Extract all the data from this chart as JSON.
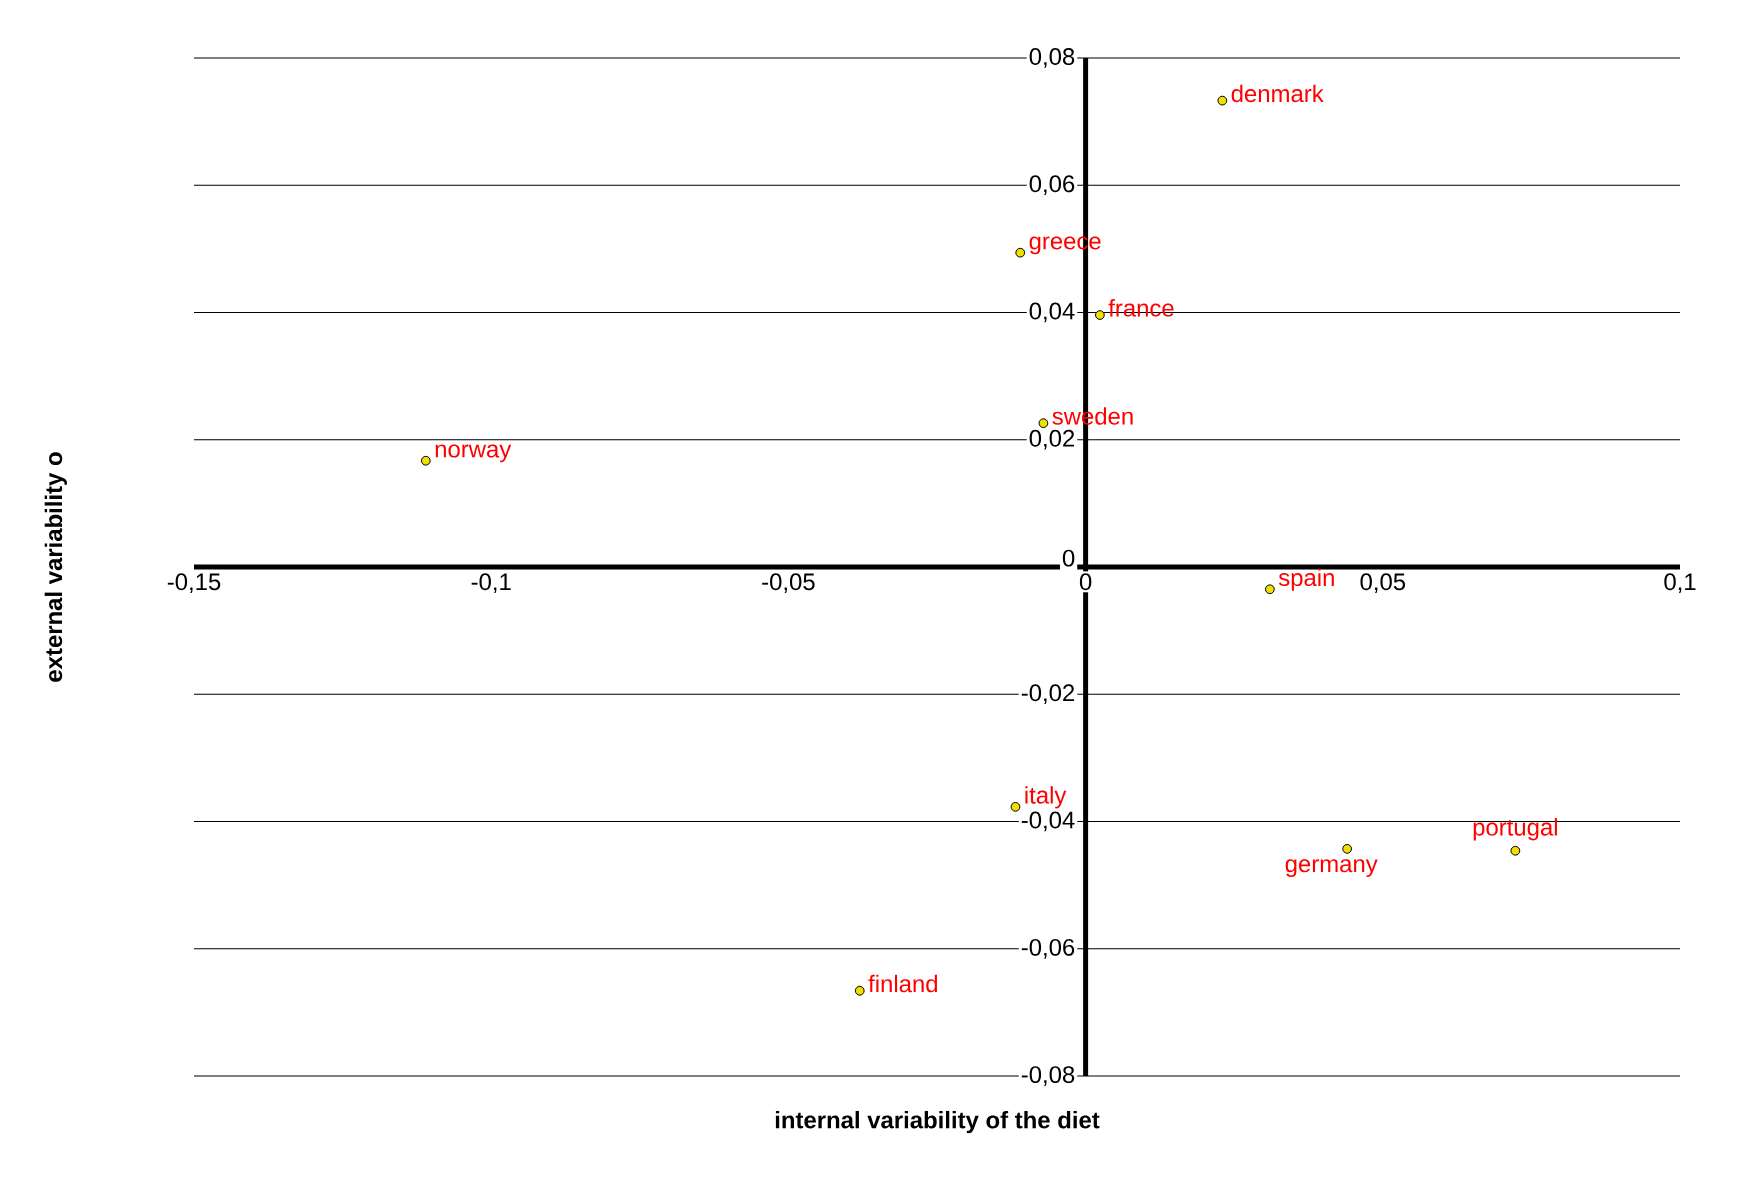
{
  "chart_data": {
    "type": "scatter",
    "xlabel": "internal variability of the diet",
    "ylabel": "external variability o",
    "x": [
      0.023,
      -0.011,
      0.0024,
      -0.0071,
      -0.111,
      0.031,
      -0.0118,
      0.044,
      0.0723,
      -0.038
    ],
    "values": [
      0.0733,
      0.0494,
      0.0396,
      0.0226,
      0.0167,
      -0.0035,
      -0.0377,
      -0.0443,
      -0.0446,
      -0.0666
    ],
    "color": "#f0e000",
    "marker": "circle",
    "grid": "y",
    "xlim": [
      -0.15,
      0.1
    ],
    "ylim": [
      -0.08,
      0.08
    ],
    "xticks": [
      {
        "value": -0.15,
        "label": "-0,15"
      },
      {
        "value": -0.1,
        "label": "-0,1"
      },
      {
        "value": -0.05,
        "label": "-0,05"
      },
      0,
      {
        "value": 0.05,
        "label": "0,05"
      },
      {
        "value": 0.1,
        "label": "0,1"
      }
    ],
    "yticks": [
      {
        "value": -0.08,
        "label": "-0,08"
      },
      {
        "value": -0.06,
        "label": "-0,06"
      },
      {
        "value": -0.04,
        "label": "-0,04"
      },
      {
        "value": -0.02,
        "label": "-0,02"
      },
      0,
      {
        "value": 0.02,
        "label": "0,02"
      },
      {
        "value": 0.04,
        "label": "0,04"
      },
      {
        "value": 0.06,
        "label": "0,06"
      },
      {
        "value": 0.08,
        "label": "0,08"
      }
    ],
    "annotations": [
      {
        "text": "denmark",
        "x": 0.023,
        "y": 0.0733
      },
      {
        "text": "greece",
        "x": -0.011,
        "y": 0.0494
      },
      {
        "text": "france",
        "x": 0.0024,
        "y": 0.0396
      },
      {
        "text": "sweden",
        "x": -0.0071,
        "y": 0.0226
      },
      {
        "text": "norway",
        "x": -0.111,
        "y": 0.0167
      },
      {
        "text": "spain",
        "x": 0.031,
        "y": -0.0035
      },
      {
        "text": "italy",
        "x": -0.0118,
        "y": -0.0377
      },
      {
        "text": "germany",
        "x": 0.044,
        "y": -0.0443
      },
      {
        "text": "portugal",
        "x": 0.0723,
        "y": -0.0446
      },
      {
        "text": "finland",
        "x": -0.038,
        "y": -0.0666
      }
    ]
  }
}
